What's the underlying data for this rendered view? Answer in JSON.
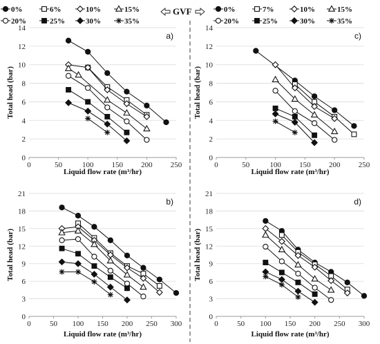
{
  "gvf_header": "GVF",
  "legend_left": {
    "row1": [
      "0%",
      "6%",
      "10%",
      "15%"
    ],
    "row2": [
      "20%",
      "25%",
      "30%",
      "35%"
    ]
  },
  "legend_right": {
    "row1": [
      "0%",
      "7%",
      "10%",
      "15%"
    ],
    "row2": [
      "20%",
      "25%",
      "30%",
      "35%"
    ]
  },
  "chart_data": [
    {
      "panel": "a)",
      "type": "scatter",
      "xlabel": "Liquid flow rate (m³/hr)",
      "ylabel": "Total head (bar)",
      "xlim": [
        0,
        250
      ],
      "ylim": [
        0,
        14
      ],
      "xticks": [
        0,
        50,
        100,
        150,
        200,
        250
      ],
      "yticks": [
        0,
        2,
        4,
        6,
        8,
        10,
        12,
        14
      ],
      "series": [
        {
          "name": "0%",
          "marker": "circle-filled",
          "x": [
            67,
            100,
            133,
            166,
            200,
            233
          ],
          "y": [
            12.6,
            11.4,
            9.1,
            7.1,
            5.6,
            3.8
          ]
        },
        {
          "name": "6%",
          "marker": "square-open",
          "x": [
            100,
            133,
            166,
            200
          ],
          "y": [
            9.7,
            7.6,
            6.2,
            4.6
          ]
        },
        {
          "name": "10%",
          "marker": "diamond-open",
          "x": [
            67,
            100,
            133,
            166,
            200
          ],
          "y": [
            10.0,
            9.7,
            7.3,
            5.8,
            4.4
          ]
        },
        {
          "name": "15%",
          "marker": "triangle-open",
          "x": [
            67,
            84,
            133,
            166,
            200
          ],
          "y": [
            9.6,
            8.9,
            6.2,
            4.8,
            3.1
          ]
        },
        {
          "name": "20%",
          "marker": "circle-open",
          "x": [
            67,
            100,
            133,
            166,
            200
          ],
          "y": [
            8.8,
            7.5,
            5.4,
            3.9,
            1.9
          ]
        },
        {
          "name": "25%",
          "marker": "square-filled",
          "x": [
            67,
            100,
            133,
            166
          ],
          "y": [
            7.3,
            6.0,
            4.4,
            2.7
          ]
        },
        {
          "name": "30%",
          "marker": "diamond-filled",
          "x": [
            67,
            100,
            133,
            166
          ],
          "y": [
            5.9,
            5.0,
            3.6,
            1.8
          ]
        },
        {
          "name": "35%",
          "marker": "star",
          "x": [
            100,
            133
          ],
          "y": [
            4.2,
            2.7
          ]
        }
      ]
    },
    {
      "panel": "c)",
      "type": "scatter",
      "xlabel": "Liquid flow rate (m³/hr)",
      "ylabel": "Total head (bar)",
      "xlim": [
        0,
        250
      ],
      "ylim": [
        0,
        14
      ],
      "xticks": [
        0,
        50,
        100,
        150,
        200,
        250
      ],
      "yticks": [
        0,
        2,
        4,
        6,
        8,
        10,
        12,
        14
      ],
      "series": [
        {
          "name": "0%",
          "marker": "circle-filled",
          "x": [
            67,
            133,
            166,
            200,
            233
          ],
          "y": [
            11.5,
            8.3,
            6.6,
            5.1,
            3.4
          ]
        },
        {
          "name": "7%",
          "marker": "square-open",
          "x": [
            133,
            166,
            200,
            233
          ],
          "y": [
            7.9,
            6.0,
            4.4,
            2.5
          ]
        },
        {
          "name": "10%",
          "marker": "diamond-open",
          "x": [
            100,
            133,
            166,
            200
          ],
          "y": [
            10.0,
            7.5,
            5.5,
            4.2
          ]
        },
        {
          "name": "15%",
          "marker": "triangle-open",
          "x": [
            100,
            133,
            166,
            200
          ],
          "y": [
            8.4,
            6.3,
            4.6,
            2.8
          ]
        },
        {
          "name": "20%",
          "marker": "circle-open",
          "x": [
            100,
            133,
            166,
            200
          ],
          "y": [
            7.2,
            5.0,
            3.7,
            1.9
          ]
        },
        {
          "name": "25%",
          "marker": "square-filled",
          "x": [
            100,
            133,
            166
          ],
          "y": [
            5.3,
            4.4,
            2.4
          ]
        },
        {
          "name": "30%",
          "marker": "diamond-filled",
          "x": [
            100,
            133,
            166
          ],
          "y": [
            4.7,
            3.8,
            1.6
          ]
        },
        {
          "name": "35%",
          "marker": "star",
          "x": [
            100,
            133
          ],
          "y": [
            3.9,
            2.7
          ]
        }
      ]
    },
    {
      "panel": "b)",
      "type": "scatter",
      "xlabel": "Liquid flow rate (m³/hr)",
      "ylabel": "Total head (bar)",
      "xlim": [
        0,
        300
      ],
      "ylim": [
        0,
        21
      ],
      "xticks": [
        0,
        50,
        100,
        150,
        200,
        250,
        300
      ],
      "yticks": [
        0,
        3,
        6,
        9,
        12,
        15,
        18,
        21
      ],
      "series": [
        {
          "name": "0%",
          "marker": "circle-filled",
          "x": [
            67,
            100,
            133,
            166,
            200,
            233,
            266,
            300
          ],
          "y": [
            18.6,
            17.2,
            15.3,
            13.0,
            10.4,
            8.3,
            6.3,
            4.0
          ]
        },
        {
          "name": "6%",
          "marker": "square-open",
          "x": [
            100,
            133,
            166,
            200,
            233,
            266
          ],
          "y": [
            15.9,
            13.4,
            10.8,
            8.6,
            7.3,
            5.2
          ]
        },
        {
          "name": "10%",
          "marker": "diamond-open",
          "x": [
            67,
            100,
            133,
            166,
            200,
            233,
            266
          ],
          "y": [
            15.0,
            15.3,
            13.0,
            10.5,
            8.3,
            6.5,
            4.1
          ]
        },
        {
          "name": "15%",
          "marker": "triangle-open",
          "x": [
            67,
            100,
            133,
            166,
            200,
            233
          ],
          "y": [
            14.3,
            14.6,
            12.3,
            9.5,
            7.1,
            5.0
          ]
        },
        {
          "name": "20%",
          "marker": "circle-open",
          "x": [
            67,
            100,
            133,
            166,
            200,
            233
          ],
          "y": [
            13.0,
            13.2,
            10.2,
            7.8,
            5.6,
            3.4
          ]
        },
        {
          "name": "25%",
          "marker": "square-filled",
          "x": [
            67,
            100,
            133,
            166,
            200
          ],
          "y": [
            11.6,
            10.7,
            8.6,
            6.7,
            4.8
          ]
        },
        {
          "name": "30%",
          "marker": "diamond-filled",
          "x": [
            67,
            100,
            133,
            166,
            200
          ],
          "y": [
            9.3,
            9.0,
            7.2,
            5.0,
            2.8
          ]
        },
        {
          "name": "35%",
          "marker": "star",
          "x": [
            67,
            100,
            133,
            166
          ],
          "y": [
            7.6,
            7.6,
            5.9,
            3.7
          ]
        }
      ]
    },
    {
      "panel": "d)",
      "type": "scatter",
      "xlabel": "Liquid flow rate (m³/hr)",
      "ylabel": "Total head (bar)",
      "xlim": [
        0,
        300
      ],
      "ylim": [
        0,
        21
      ],
      "xticks": [
        0,
        50,
        100,
        150,
        200,
        250,
        300
      ],
      "yticks": [
        0,
        3,
        6,
        9,
        12,
        15,
        18,
        21
      ],
      "series": [
        {
          "name": "0%",
          "marker": "circle-filled",
          "x": [
            100,
            133,
            166,
            200,
            233,
            266,
            300
          ],
          "y": [
            16.3,
            14.6,
            11.4,
            9.2,
            7.6,
            5.8,
            3.5
          ]
        },
        {
          "name": "7%",
          "marker": "square-open",
          "x": [
            133,
            166,
            200,
            233,
            266
          ],
          "y": [
            13.9,
            11.0,
            8.9,
            6.9,
            4.6
          ]
        },
        {
          "name": "10%",
          "marker": "diamond-open",
          "x": [
            100,
            133,
            166,
            200,
            233,
            266
          ],
          "y": [
            15.0,
            12.8,
            10.4,
            8.4,
            6.1,
            4.0
          ]
        },
        {
          "name": "15%",
          "marker": "triangle-open",
          "x": [
            100,
            133,
            166,
            200,
            233
          ],
          "y": [
            13.9,
            11.4,
            8.8,
            6.4,
            4.5
          ]
        },
        {
          "name": "20%",
          "marker": "circle-open",
          "x": [
            100,
            133,
            166,
            200,
            233
          ],
          "y": [
            11.9,
            9.4,
            7.3,
            4.9,
            2.8
          ]
        },
        {
          "name": "25%",
          "marker": "square-filled",
          "x": [
            100,
            133,
            166,
            200
          ],
          "y": [
            9.2,
            7.5,
            5.8,
            3.8
          ]
        },
        {
          "name": "30%",
          "marker": "diamond-filled",
          "x": [
            100,
            133,
            166,
            200
          ],
          "y": [
            7.6,
            6.3,
            4.3,
            2.4
          ]
        },
        {
          "name": "35%",
          "marker": "star",
          "x": [
            100,
            133,
            166
          ],
          "y": [
            6.8,
            5.4,
            3.3
          ]
        }
      ]
    }
  ]
}
